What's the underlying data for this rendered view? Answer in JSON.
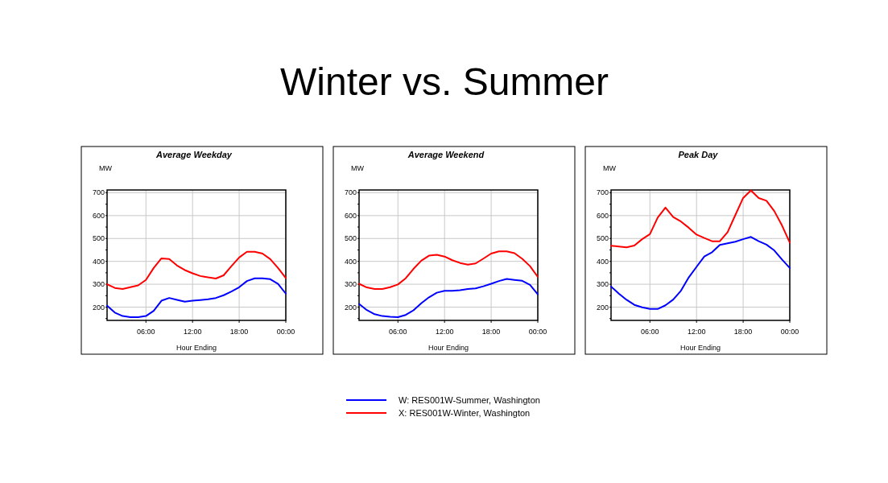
{
  "chart_data": [
    {
      "type": "line",
      "title": "Average Weekday",
      "xlabel": "Hour Ending",
      "ylabel": "MW",
      "x": [
        1,
        2,
        3,
        4,
        5,
        6,
        7,
        8,
        9,
        10,
        11,
        12,
        13,
        14,
        15,
        16,
        17,
        18,
        19,
        20,
        21,
        22,
        23,
        24
      ],
      "xlim": [
        1,
        24
      ],
      "xticks": [
        {
          "value": 6,
          "label": "06:00"
        },
        {
          "value": 12,
          "label": "12:00"
        },
        {
          "value": 18,
          "label": "18:00"
        },
        {
          "value": 24,
          "label": "00:00"
        }
      ],
      "ylim": [
        142,
        712
      ],
      "yticks": [
        {
          "value": 150,
          "label": null
        },
        200,
        {
          "value": 250,
          "label": null
        },
        300,
        {
          "value": 350,
          "label": null
        },
        400,
        {
          "value": 450,
          "label": null
        },
        500,
        {
          "value": 550,
          "label": null
        },
        600,
        {
          "value": 650,
          "label": null
        },
        700
      ],
      "grid": true,
      "line_style": "solid",
      "marker": "none",
      "series": [
        {
          "color": "#0000ff",
          "values": [
            206,
            176,
            161,
            156,
            156,
            161,
            184,
            228,
            240,
            232,
            224,
            228,
            231,
            234,
            240,
            252,
            268,
            287,
            314,
            326,
            326,
            322,
            302,
            259
          ]
        },
        {
          "color": "#ff0000",
          "values": [
            300,
            284,
            279,
            287,
            295,
            319,
            371,
            413,
            410,
            382,
            362,
            348,
            336,
            330,
            325,
            339,
            379,
            417,
            442,
            442,
            434,
            410,
            371,
            327
          ]
        }
      ]
    },
    {
      "type": "line",
      "title": "Winter vs. Summer",
      "subtitle": "Average Weekend",
      "xlabel": "Hour Ending",
      "ylabel": "MW",
      "x": [
        1,
        2,
        3,
        4,
        5,
        6,
        7,
        8,
        9,
        10,
        11,
        12,
        13,
        14,
        15,
        16,
        17,
        18,
        19,
        20,
        21,
        22,
        23,
        24
      ],
      "xlim": [
        1,
        24
      ],
      "xticks": [
        {
          "value": 6,
          "label": "06:00"
        },
        {
          "value": 12,
          "label": "12:00"
        },
        {
          "value": 18,
          "label": "18:00"
        },
        {
          "value": 24,
          "label": "00:00"
        }
      ],
      "ylim": [
        142,
        712
      ],
      "yticks": [
        {
          "value": 150,
          "label": null
        },
        200,
        {
          "value": 250,
          "label": null
        },
        300,
        {
          "value": 350,
          "label": null
        },
        400,
        {
          "value": 450,
          "label": null
        },
        500,
        {
          "value": 550,
          "label": null
        },
        600,
        {
          "value": 650,
          "label": null
        },
        700
      ],
      "grid": true,
      "legend": "bottom",
      "line_style": "solid",
      "marker": "none",
      "series": [
        {
          "name": "W: RES001W-Summer, Washington",
          "color": "#0000ff",
          "values": [
            214,
            187,
            169,
            161,
            158,
            156,
            166,
            186,
            217,
            243,
            263,
            271,
            271,
            274,
            279,
            282,
            291,
            302,
            314,
            323,
            319,
            315,
            297,
            256
          ]
        },
        {
          "name": "X: RES001W-Winter, Washington",
          "color": "#ff0000",
          "values": [
            302,
            286,
            279,
            279,
            287,
            299,
            326,
            367,
            403,
            425,
            429,
            421,
            405,
            393,
            386,
            391,
            412,
            434,
            444,
            444,
            436,
            411,
            379,
            332
          ]
        }
      ]
    },
    {
      "type": "line",
      "title": "Peak Day",
      "xlabel": "Hour Ending",
      "ylabel": "MW",
      "x": [
        1,
        2,
        3,
        4,
        5,
        6,
        7,
        8,
        9,
        10,
        11,
        12,
        13,
        14,
        15,
        16,
        17,
        18,
        19,
        20,
        21,
        22,
        23,
        24
      ],
      "xlim": [
        1,
        24
      ],
      "xticks": [
        {
          "value": 6,
          "label": "06:00"
        },
        {
          "value": 12,
          "label": "12:00"
        },
        {
          "value": 18,
          "label": "18:00"
        },
        {
          "value": 24,
          "label": "00:00"
        }
      ],
      "ylim": [
        142,
        712
      ],
      "yticks": [
        {
          "value": 150,
          "label": null
        },
        200,
        {
          "value": 250,
          "label": null
        },
        300,
        {
          "value": 350,
          "label": null
        },
        400,
        {
          "value": 450,
          "label": null
        },
        500,
        {
          "value": 550,
          "label": null
        },
        600,
        {
          "value": 650,
          "label": null
        },
        700
      ],
      "grid": true,
      "line_style": "solid",
      "marker": "none",
      "series": [
        {
          "color": "#0000ff",
          "values": [
            290,
            259,
            232,
            210,
            199,
            192,
            192,
            208,
            233,
            272,
            330,
            376,
            421,
            440,
            472,
            479,
            486,
            497,
            507,
            488,
            473,
            448,
            408,
            371
          ]
        },
        {
          "color": "#ff0000",
          "values": [
            468,
            465,
            461,
            469,
            497,
            519,
            591,
            635,
            594,
            574,
            547,
            517,
            502,
            488,
            488,
            528,
            603,
            677,
            710,
            677,
            665,
            620,
            557,
            482
          ]
        }
      ]
    }
  ]
}
